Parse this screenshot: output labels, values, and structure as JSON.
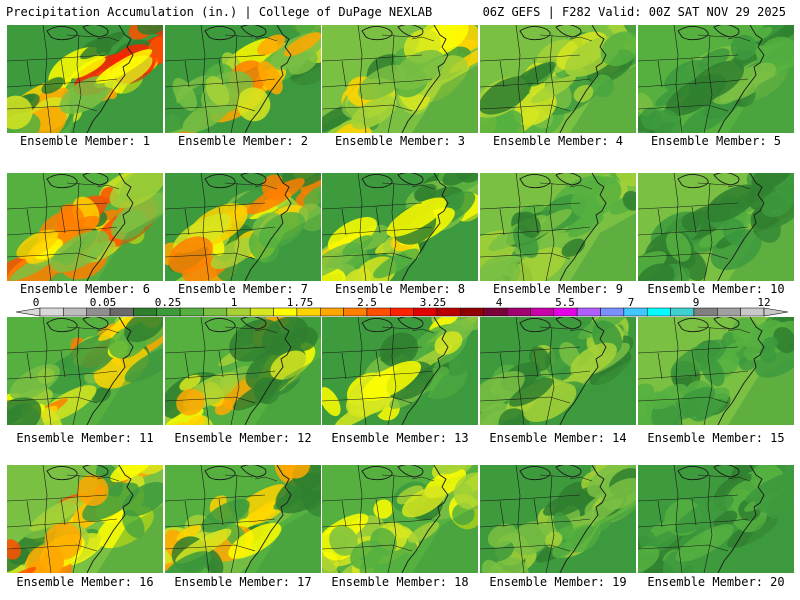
{
  "header": {
    "left": "Precipitation Accumulation (in.) | College of DuPage NEXLAB",
    "right": "06Z GEFS | F282 Valid: 00Z SAT NOV 29 2025"
  },
  "member_label_prefix": "Ensemble Member: ",
  "members": [
    "1",
    "2",
    "3",
    "4",
    "5",
    "6",
    "7",
    "8",
    "9",
    "10",
    "11",
    "12",
    "13",
    "14",
    "15",
    "16",
    "17",
    "18",
    "19",
    "20"
  ],
  "color_scale": {
    "labels": [
      "0",
      "0.05",
      "0.25",
      "1",
      "1.75",
      "2.5",
      "3.25",
      "4",
      "5.5",
      "7",
      "9",
      "12"
    ],
    "colors": [
      "#d9d9d9",
      "#bdbdbd",
      "#8f8f8f",
      "#6a6a6a",
      "#2f7f2f",
      "#3d9a3d",
      "#55b040",
      "#7ac043",
      "#a6d236",
      "#d6e620",
      "#ffff00",
      "#ffd400",
      "#ffa800",
      "#ff7f00",
      "#ff5000",
      "#ff2200",
      "#e00000",
      "#b80000",
      "#900000",
      "#7a0038",
      "#a00070",
      "#c800a8",
      "#e600e6",
      "#b060ff",
      "#7a90ff",
      "#40c8ff",
      "#00ffff",
      "#40d0d0",
      "#808080",
      "#a0a0a0",
      "#c8c8c8"
    ]
  },
  "map_palette": [
    "#2f7f2f",
    "#3d9a3d",
    "#55b040",
    "#7ac043",
    "#a6d236",
    "#d6e620",
    "#ffff00",
    "#ffd400",
    "#ffa800",
    "#ff7f00",
    "#ff5000",
    "#ff2200",
    "#e00000",
    "#b80000",
    "#900000",
    "#a00070",
    "#c800a8",
    "#e600e6",
    "#7a90ff",
    "#00ffff"
  ]
}
